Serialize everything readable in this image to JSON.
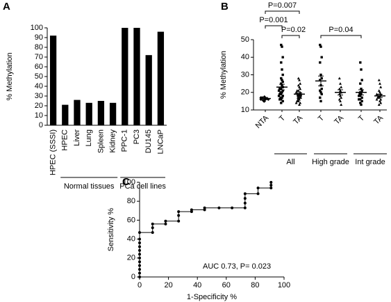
{
  "chart_data": [
    {
      "panel": "A",
      "type": "bar",
      "ylabel": "% Methylation",
      "color": "#000000",
      "categories": [
        "HPEC (SSSI)",
        "HPEC",
        "Liver",
        "Lung",
        "Spleen",
        "Kidney",
        "PPC-1",
        "PC3",
        "DU145",
        "LNCaP"
      ],
      "values": [
        92,
        21,
        26,
        23,
        25,
        23,
        100,
        100,
        72,
        96
      ],
      "group_labels": [
        "Normal tissues",
        "PCa cell lines"
      ],
      "ylim": [
        0,
        100
      ],
      "yticks": [
        0,
        10,
        20,
        30,
        40,
        50,
        60,
        70,
        80,
        90,
        100
      ]
    },
    {
      "panel": "B",
      "type": "dotplot",
      "ylabel": "% Methylation",
      "color": "#000000",
      "categories": [
        "NTA",
        "T",
        "TA",
        "T",
        "TA",
        "T",
        "TA"
      ],
      "group_labels": [
        "All",
        "High grade",
        "Int grade"
      ],
      "points": [
        [
          15,
          16,
          16.5,
          17,
          15.5,
          16,
          17.5,
          16,
          15,
          16.5,
          17
        ],
        [
          47,
          46,
          40,
          37,
          33,
          30,
          28,
          27,
          26,
          25,
          24,
          23,
          22,
          22,
          21,
          21,
          20,
          20,
          19,
          19,
          18,
          18,
          17,
          17,
          16,
          16,
          15,
          14
        ],
        [
          28,
          27,
          25,
          24,
          23,
          22,
          21,
          21,
          20,
          20,
          19,
          19,
          19,
          18,
          18,
          18,
          17,
          17,
          17,
          16,
          16,
          15,
          15,
          14,
          14,
          13
        ],
        [
          47,
          46,
          40,
          37,
          30,
          28,
          27,
          24,
          22,
          21,
          20,
          19,
          17,
          15
        ],
        [
          28,
          25,
          23,
          22,
          21,
          20,
          19,
          18,
          17,
          16,
          15,
          13
        ],
        [
          37,
          33,
          27,
          25,
          22,
          21,
          20,
          19,
          19,
          18,
          18,
          17,
          16,
          16,
          15,
          14,
          13
        ],
        [
          27,
          25,
          23,
          21,
          20,
          19,
          19,
          18,
          18,
          17,
          17,
          16,
          16,
          15,
          14,
          13
        ]
      ],
      "means": [
        16.5,
        23,
        19,
        26.5,
        20,
        20,
        18
      ],
      "errors": [
        0.6,
        1.6,
        0.8,
        2.8,
        1.5,
        1.5,
        0.9
      ],
      "annotations": [
        "P=0.001",
        "P=0.007",
        "P=0.02",
        "P=0.04"
      ],
      "ylim": [
        10,
        50
      ],
      "yticks": [
        10,
        20,
        30,
        40,
        50
      ]
    },
    {
      "panel": "C",
      "type": "line",
      "xlabel": "1-Specificity %",
      "ylabel": "Sensitivity %",
      "color": "#000000",
      "annotation": "AUC 0.73, P= 0.023",
      "x": [
        0,
        0,
        0,
        0,
        0,
        0,
        0,
        0,
        0,
        0,
        0,
        0,
        9,
        9,
        9,
        18,
        18,
        27,
        27,
        27,
        36,
        36,
        45,
        45,
        55,
        64,
        73,
        73,
        73,
        73,
        82,
        82,
        91,
        91,
        91
      ],
      "y": [
        0,
        4,
        8,
        12,
        16,
        20,
        24,
        28,
        32,
        36,
        40,
        47,
        47,
        52,
        56,
        56,
        59,
        59,
        65,
        69,
        69,
        71,
        71,
        73,
        73,
        73,
        73,
        78,
        83,
        88,
        88,
        94,
        94,
        97,
        100
      ],
      "xlim": [
        0,
        100
      ],
      "xticks": [
        0,
        20,
        40,
        60,
        80,
        100
      ],
      "ylim": [
        0,
        100
      ],
      "yticks": [
        0,
        20,
        40,
        60,
        80,
        100
      ]
    }
  ]
}
